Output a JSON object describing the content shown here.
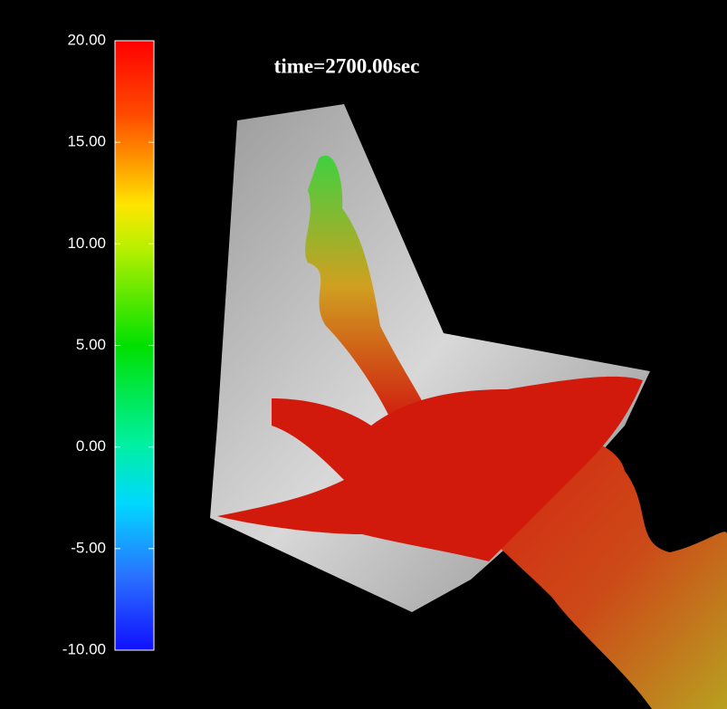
{
  "title": "time=2700.00sec",
  "colorbar": {
    "range": [
      -10,
      20
    ],
    "ticks": [
      {
        "value": 20,
        "label": "20.00"
      },
      {
        "value": 15,
        "label": "15.00"
      },
      {
        "value": 10,
        "label": "10.00"
      },
      {
        "value": 5,
        "label": "5.00"
      },
      {
        "value": 0,
        "label": "0.00"
      },
      {
        "value": -5,
        "label": "-5.00"
      },
      {
        "value": -10,
        "label": "-10.00"
      }
    ]
  }
}
